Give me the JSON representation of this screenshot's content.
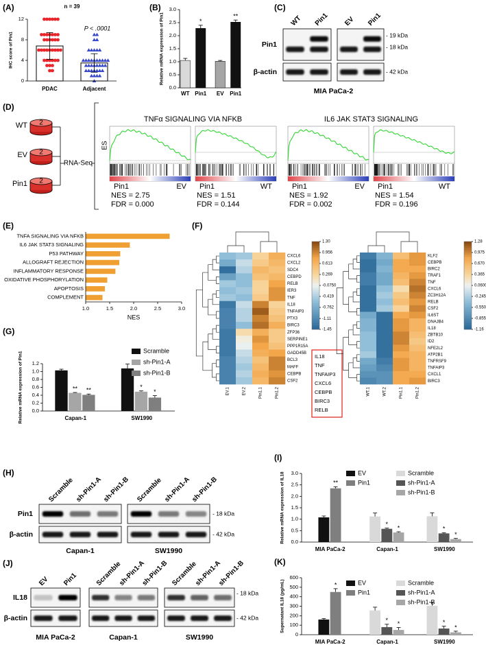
{
  "chart_data": [
    {
      "type": "dotbar",
      "label": "(A)",
      "title": "n = 39",
      "annotation": "P < .0001",
      "ylabel": "IHC score of Pin1",
      "categories": [
        "PDAC",
        "Adjacent"
      ],
      "values": [
        6.8,
        3.5
      ],
      "errors": [
        2.6,
        1.8
      ],
      "points": [
        [
          12,
          12,
          12,
          12,
          12,
          12,
          9,
          9,
          9,
          9,
          9,
          9,
          9,
          8,
          8,
          8,
          8,
          8,
          8,
          6,
          6,
          6,
          6,
          6,
          6,
          6,
          6,
          6,
          4,
          4,
          4,
          4,
          4,
          4,
          3,
          3,
          3,
          2,
          2
        ],
        [
          9,
          9,
          8,
          8,
          6,
          6,
          6,
          6,
          6,
          4,
          4,
          4,
          4,
          4,
          4,
          4,
          4,
          4,
          4,
          3,
          3,
          3,
          3,
          3,
          3,
          3,
          3,
          2,
          2,
          2,
          2,
          2,
          2,
          2,
          1,
          1,
          1,
          1,
          0
        ]
      ],
      "colors": [
        "#e8262b",
        "#3647c9"
      ],
      "ylim": [
        0,
        12
      ],
      "yticks": [
        0,
        4,
        8,
        12
      ]
    },
    {
      "type": "bar",
      "label": "(B)",
      "ylabel": "Relative mRNA expression of Pin1",
      "categories": [
        "WT",
        "Pin1",
        "EV",
        "Pin1"
      ],
      "values": [
        1.05,
        2.28,
        1.02,
        2.52
      ],
      "errors": [
        0.08,
        0.12,
        0.03,
        0.08
      ],
      "annotations": [
        null,
        "*",
        null,
        "**"
      ],
      "colors": [
        "#d9d9d9",
        "#111111",
        "#a6a6a6",
        "#111111"
      ],
      "ylim": [
        0,
        3
      ],
      "yticks": [
        {
          "value": 0,
          "label": "0.0"
        },
        0.5,
        {
          "value": 1,
          "label": "1.0"
        },
        1.5,
        {
          "value": 2,
          "label": "2.0"
        },
        2.5,
        {
          "value": 3,
          "label": "3.0"
        }
      ]
    },
    {
      "type": "hbar",
      "label": "(E)",
      "xlabel": "NES",
      "categories": [
        "TNFA SIGNALING VIA NFKB",
        "IL6 JAK STAT3 SIGNALING",
        "P53 PATHWAY",
        "ALLOGRAFT REJECTION",
        "INFLAMMATORY RESPONSE",
        "OXIDATIVE PHOSPHORYLATION",
        "APOPTOSIS",
        "COMPLEMENT"
      ],
      "values": [
        2.75,
        1.92,
        1.72,
        1.7,
        1.62,
        1.45,
        1.4,
        1.35
      ],
      "color": "#f0a033",
      "xlim": [
        1,
        3
      ],
      "xticks": [
        {
          "value": 1,
          "label": "1.0"
        },
        1.5,
        {
          "value": 2,
          "label": "2.0"
        },
        2.5,
        {
          "value": 3,
          "label": "3.0"
        }
      ]
    },
    {
      "type": "heatmap",
      "label": "(F)",
      "columns": [
        "EV.1",
        "EV.2",
        "Pin1.1",
        "Pin1.2"
      ],
      "rows": [
        "CXCL6",
        "CXCL2",
        "SDC4",
        "CEBPD",
        "RELB",
        "IER3",
        "TNF",
        "IL18",
        "TNFAIP3",
        "PTX3",
        "BIRC3",
        "ZFP36",
        "SERPINE1",
        "PPP1R15A",
        "GADD45B",
        "BCL3",
        "MAFF",
        "CEBPB",
        "CSF2"
      ],
      "values": [
        [
          -0.6,
          -0.5,
          0.3,
          0.7
        ],
        [
          -0.8,
          -0.3,
          0.4,
          0.6
        ],
        [
          -1.4,
          -0.4,
          0.6,
          0.5
        ],
        [
          -0.9,
          -0.6,
          0.5,
          0.6
        ],
        [
          -0.5,
          -0.6,
          0.3,
          0.8
        ],
        [
          -0.6,
          -0.5,
          0.3,
          0.9
        ],
        [
          -0.5,
          -0.6,
          0.4,
          0.9
        ],
        [
          -1.3,
          -0.3,
          1.0,
          0.3
        ],
        [
          -1.2,
          -0.4,
          1.2,
          0.4
        ],
        [
          -1.2,
          -0.4,
          1.0,
          0.5
        ],
        [
          -1.2,
          -0.6,
          1.1,
          0.7
        ],
        [
          -1.3,
          0.2,
          0.7,
          0.4
        ],
        [
          -1.3,
          0.0,
          0.9,
          0.4
        ],
        [
          -1.3,
          -0.1,
          0.8,
          0.5
        ],
        [
          -1.3,
          -0.3,
          0.7,
          0.8
        ],
        [
          -1.2,
          -0.4,
          0.5,
          1.0
        ],
        [
          -1.2,
          -0.5,
          0.6,
          1.0
        ],
        [
          -1.2,
          -0.4,
          0.7,
          0.9
        ],
        [
          -1.2,
          -0.5,
          0.6,
          1.0
        ]
      ],
      "zlim": [
        -1.45,
        1.3
      ],
      "zticks": [
        {
          "value": 1.3,
          "label": "1.30"
        },
        0.956,
        0.613,
        0.269,
        {
          "value": -0.075,
          "label": "-0.0750"
        },
        -0.419,
        -0.762,
        -1.11,
        -1.45
      ],
      "highlight_genes": [
        "IL18",
        "TNF",
        "TNFAIP3",
        "CXCL6",
        "CEBPB",
        "BIRC3",
        "RELB"
      ]
    },
    {
      "type": "heatmap",
      "columns": [
        "WT.1",
        "WT.2",
        "Pin1.1",
        "Pin1.2"
      ],
      "rows": [
        "KLF2",
        "CEBPB",
        "BIRC2",
        "TRAF1",
        "TNF",
        "CXCL6",
        "ZC3H12A",
        "RELB",
        "CSF2",
        "IL6ST",
        "DNAJB4",
        "IL18",
        "ZBTB10",
        "ID2",
        "NFE2L2",
        "ATP2B1",
        "TNFRSF9",
        "TNFAIP3",
        "CXCL1",
        "BIRC3"
      ],
      "values": [
        [
          -1.0,
          -0.5,
          0.6,
          0.9
        ],
        [
          -1.1,
          -0.6,
          0.8,
          0.9
        ],
        [
          -1.1,
          -0.5,
          0.8,
          0.8
        ],
        [
          -1.0,
          -0.6,
          0.7,
          0.9
        ],
        [
          -1.0,
          -0.6,
          0.6,
          1.0
        ],
        [
          -1.1,
          -0.4,
          0.3,
          1.1
        ],
        [
          -1.1,
          -0.3,
          0.5,
          1.0
        ],
        [
          -1.1,
          -0.4,
          0.6,
          0.9
        ],
        [
          -1.1,
          -0.3,
          0.4,
          1.0
        ],
        [
          -0.6,
          -1.1,
          0.8,
          0.9
        ],
        [
          -0.5,
          -1.1,
          0.9,
          0.7
        ],
        [
          -0.5,
          -1.1,
          0.9,
          0.7
        ],
        [
          -0.4,
          -1.1,
          1.0,
          0.6
        ],
        [
          -0.4,
          -1.1,
          1.0,
          0.5
        ],
        [
          -0.4,
          -1.1,
          0.9,
          0.6
        ],
        [
          -0.3,
          -1.1,
          0.8,
          0.7
        ],
        [
          -0.6,
          -1.0,
          0.9,
          0.7
        ],
        [
          -0.7,
          -0.9,
          0.9,
          0.7
        ],
        [
          -0.8,
          -0.8,
          0.8,
          0.8
        ],
        [
          -0.9,
          -0.8,
          0.8,
          0.9
        ]
      ],
      "zlim": [
        -1.16,
        1.28
      ],
      "zticks": [
        1.28,
        0.975,
        {
          "value": 0.67,
          "label": "0.670"
        },
        0.365,
        {
          "value": 0.06,
          "label": "0.0600"
        },
        -0.245,
        {
          "value": -0.55,
          "label": "-0.550"
        },
        -0.855,
        -1.16
      ]
    },
    {
      "type": "grouped-bar",
      "label": "(G)",
      "ylabel": "Relative mRNA expression of Pin1",
      "categories": [
        "Capan-1",
        "SW1990"
      ],
      "series": [
        {
          "name": "Scramble",
          "color": "#111111",
          "values": [
            1.03,
            1.08
          ],
          "errors": [
            0.03,
            0.11
          ]
        },
        {
          "name": "sh-Pin1-A",
          "color": "#a6a6a6",
          "values": [
            0.46,
            0.49
          ],
          "errors": [
            0.01,
            0.02
          ],
          "annotations": [
            "**",
            "*"
          ]
        },
        {
          "name": "sh-Pin1-B",
          "color": "#7f7f7f",
          "values": [
            0.41,
            0.34
          ],
          "errors": [
            0.02,
            0.05
          ],
          "annotations": [
            "**",
            "*"
          ]
        }
      ],
      "ylim": [
        0,
        1.2
      ],
      "yticks": [
        {
          "value": 0,
          "label": "0.0"
        },
        0.2,
        0.4,
        0.6,
        0.8,
        {
          "value": 1,
          "label": "1.0"
        },
        1.2
      ]
    },
    {
      "type": "grouped-bar",
      "label": "(I)",
      "ylabel": "Relative mRNA expression of IL18",
      "categories": [
        "MIA PaCa-2",
        "Capan-1",
        "SW1990"
      ],
      "series": [
        {
          "name": "EV",
          "color": "#111111",
          "values": [
            1.08,
            null,
            null
          ],
          "errors": [
            0.06,
            null,
            null
          ]
        },
        {
          "name": "Pin1",
          "color": "#7f7f7f",
          "values": [
            2.35,
            null,
            null
          ],
          "errors": [
            0.07,
            null,
            null
          ],
          "annotations": [
            "**",
            null,
            null
          ]
        },
        {
          "name": "Scramble",
          "color": "#d9d9d9",
          "values": [
            null,
            1.12,
            1.13
          ],
          "errors": [
            null,
            0.15,
            0.15
          ]
        },
        {
          "name": "sh-Pin1-A",
          "color": "#555555",
          "values": [
            null,
            0.58,
            0.38
          ],
          "errors": [
            null,
            0.03,
            0.03
          ],
          "annotations": [
            null,
            "*",
            "*"
          ]
        },
        {
          "name": "sh-Pin1-B",
          "color": "#a6a6a6",
          "values": [
            null,
            0.42,
            0.13
          ],
          "errors": [
            null,
            0.03,
            0.03
          ],
          "annotations": [
            null,
            "*",
            "*"
          ]
        }
      ],
      "ylim": [
        0,
        3
      ],
      "yticks": [
        {
          "value": 0,
          "label": "0.0"
        },
        0.5,
        {
          "value": 1,
          "label": "1.0"
        },
        1.5,
        {
          "value": 2,
          "label": "2.0"
        },
        2.5,
        {
          "value": 3,
          "label": "3.0"
        }
      ]
    },
    {
      "type": "grouped-bar",
      "label": "(K)",
      "ylabel": "Supernatant IL18 (pg/mL)",
      "categories": [
        "MIA PaCa-2",
        "Capan-1",
        "SW1990"
      ],
      "series": [
        {
          "name": "EV",
          "color": "#111111",
          "values": [
            160,
            null,
            null
          ],
          "errors": [
            10,
            null,
            null
          ]
        },
        {
          "name": "Pin1",
          "color": "#7f7f7f",
          "values": [
            450,
            null,
            null
          ],
          "errors": [
            35,
            null,
            null
          ],
          "annotations": [
            "*",
            null,
            null
          ]
        },
        {
          "name": "Scramble",
          "color": "#d9d9d9",
          "values": [
            null,
            255,
            305
          ],
          "errors": [
            null,
            35,
            35
          ]
        },
        {
          "name": "sh-Pin1-A",
          "color": "#555555",
          "values": [
            null,
            80,
            65
          ],
          "errors": [
            null,
            30,
            25
          ],
          "annotations": [
            null,
            "*",
            "*"
          ]
        },
        {
          "name": "sh-Pin1-B",
          "color": "#a6a6a6",
          "values": [
            null,
            50,
            25
          ],
          "errors": [
            null,
            25,
            12
          ],
          "annotations": [
            null,
            "*",
            "*"
          ]
        }
      ],
      "ylim": [
        0,
        600
      ],
      "yticks": [
        0,
        100,
        200,
        300,
        400,
        500,
        600
      ]
    }
  ],
  "gsea": {
    "label": "(D)",
    "samples": [
      "WT",
      "EV",
      "Pin1"
    ],
    "replicates": "2",
    "method": "RNA-Seq",
    "ylabel": "ES",
    "sets": [
      {
        "title": "TNFα SIGNALING VIA NFKB",
        "plots": [
          {
            "left": "Pin1",
            "right": "EV",
            "nes": "NES = 2.75",
            "fdr": "FDR = 0.000"
          },
          {
            "left": "Pin1",
            "right": "WT",
            "nes": "NES = 1.51",
            "fdr": "FDR = 0.144"
          }
        ]
      },
      {
        "title": "IL6 JAK STAT3 SIGNALING",
        "plots": [
          {
            "left": "Pin1",
            "right": "EV",
            "nes": "NES = 1.92",
            "fdr": "FDR = 0.002"
          },
          {
            "left": "Pin1",
            "right": "WT",
            "nes": "NES = 1.54",
            "fdr": "FDR = 0.196"
          }
        ]
      }
    ]
  },
  "blots": [
    {
      "label": "(C)",
      "groups": [
        {
          "lanes": [
            "WT",
            "Pin1"
          ]
        },
        {
          "lanes": [
            "EV",
            "Pin1"
          ]
        }
      ],
      "rows": [
        "Pin1",
        "β-actin"
      ],
      "markers": [
        "- 19 kDa",
        "- 18 kDa",
        "- 42 kDa"
      ],
      "caption": "MIA PaCa-2"
    },
    {
      "label": "(H)",
      "groups": [
        {
          "lanes": [
            "Scramble",
            "sh-Pin1-A",
            "sh-Pin1-B"
          ],
          "caption": "Capan-1"
        },
        {
          "lanes": [
            "Scramble",
            "sh-Pin1-A",
            "sh-Pin1-B"
          ],
          "caption": "SW1990"
        }
      ],
      "rows": [
        "Pin1",
        "β-actin"
      ],
      "markers": [
        "- 18 kDa",
        "- 42 kDa"
      ]
    },
    {
      "label": "(J)",
      "groups": [
        {
          "lanes": [
            "EV",
            "Pin1"
          ],
          "caption": "MIA PaCa-2"
        },
        {
          "lanes": [
            "Scramble",
            "sh-Pin1-A",
            "sh-Pin1-B"
          ],
          "caption": "Capan-1"
        },
        {
          "lanes": [
            "Scramble",
            "sh-Pin1-A",
            "sh-Pin1-B"
          ],
          "caption": "SW1990"
        }
      ],
      "rows": [
        "IL18",
        "β-actin"
      ],
      "markers": [
        "- 18 kDa",
        "- 42 kDa"
      ]
    }
  ]
}
